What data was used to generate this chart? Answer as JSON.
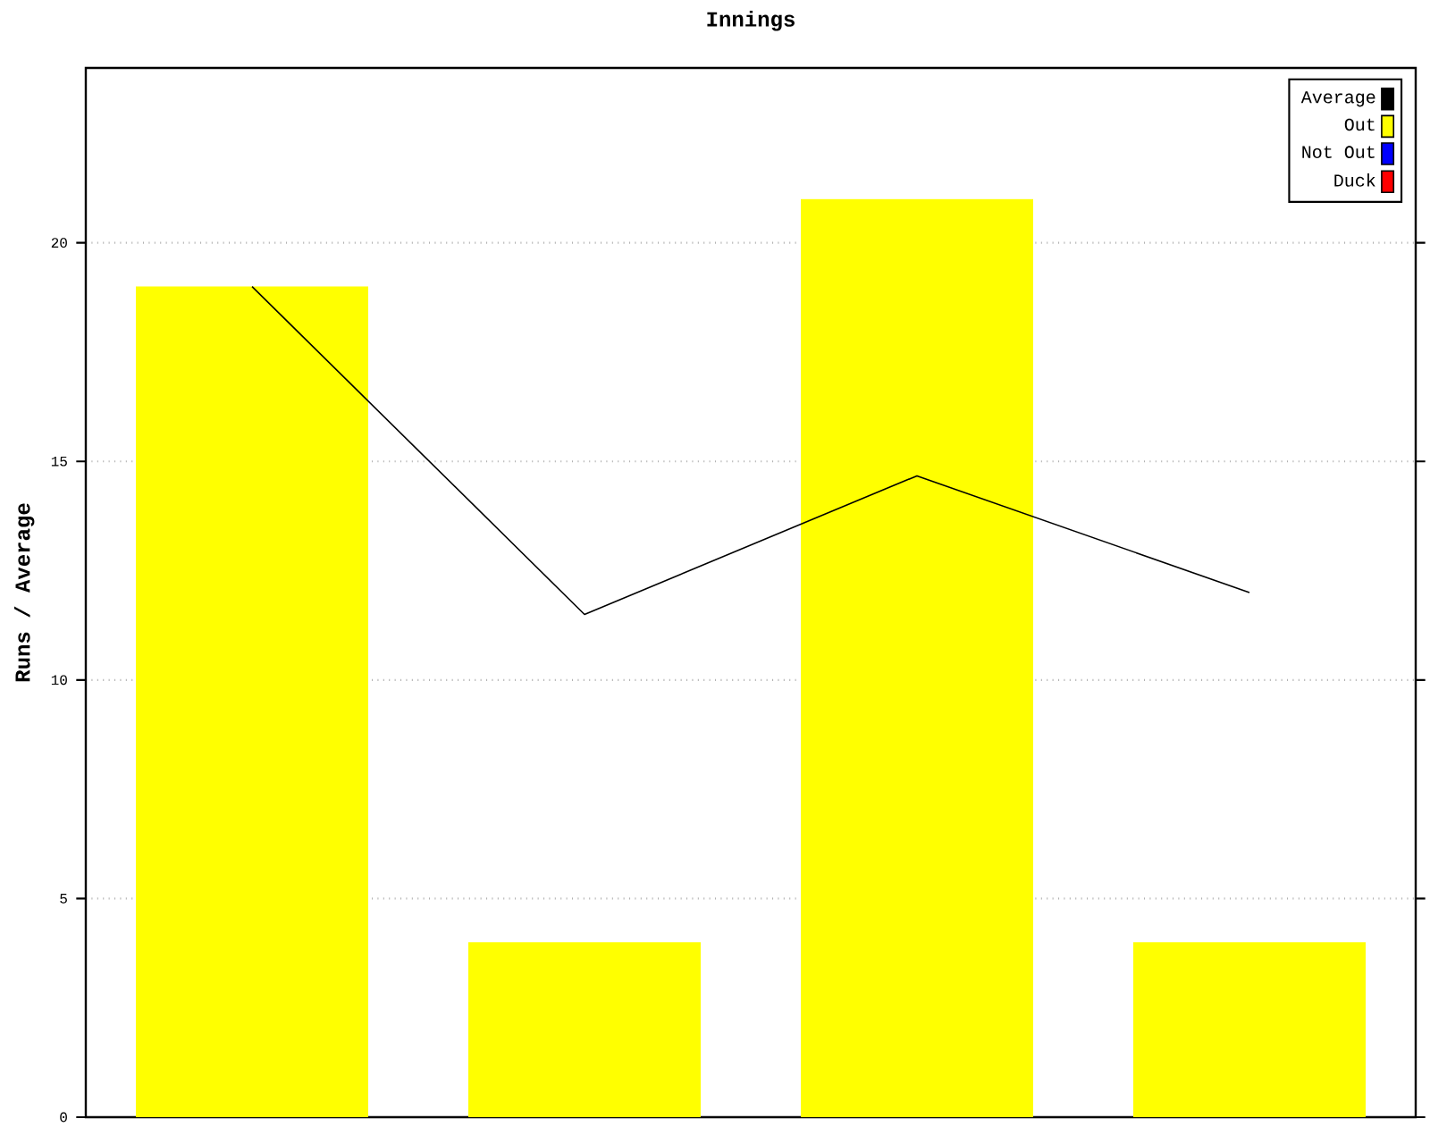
{
  "chart_data": {
    "type": "bar",
    "title": "Innings",
    "ylabel": "Runs / Average",
    "categories": [
      null,
      null,
      null,
      null
    ],
    "series": [
      {
        "name": "Average",
        "type": "line",
        "color": "#000000",
        "values": [
          19,
          11.5,
          14.67,
          12
        ]
      },
      {
        "name": "Out",
        "color": "#ffff00",
        "values": [
          19,
          4,
          21,
          4
        ]
      },
      {
        "name": "Not Out",
        "color": "#0000ff",
        "values": [
          null,
          null,
          null,
          null
        ]
      },
      {
        "name": "Duck",
        "color": "#ff0000",
        "values": [
          null,
          null,
          null,
          null
        ]
      }
    ],
    "ylim": [
      0,
      24
    ],
    "yticks": [
      0,
      5,
      10,
      15,
      20
    ],
    "grid": "y",
    "legend": "top right",
    "tick_labels": "y",
    "marker": "none"
  }
}
